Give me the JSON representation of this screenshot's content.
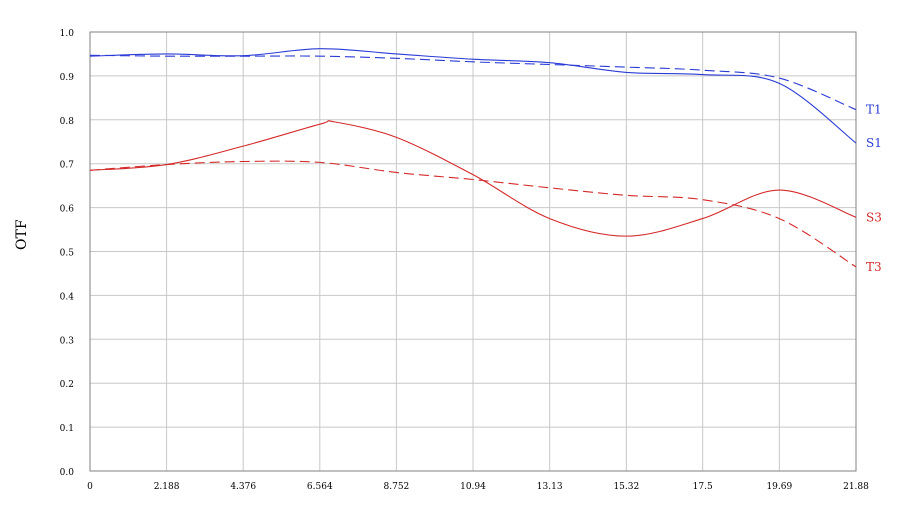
{
  "chart_data": {
    "type": "line",
    "xlabel": "",
    "ylabel": "OTF",
    "x_ticks": [
      "0",
      "2.188",
      "4.376",
      "6.564",
      "8.752",
      "10.94",
      "13.13",
      "15.32",
      "17.5",
      "19.69",
      "21.88"
    ],
    "y_ticks": [
      "0.0",
      "0.1",
      "0.2",
      "0.3",
      "0.4",
      "0.5",
      "0.6",
      "0.7",
      "0.8",
      "0.9",
      "1.0"
    ],
    "xlim": [
      0,
      21.88
    ],
    "ylim": [
      0,
      1.0
    ],
    "grid": true,
    "series": [
      {
        "name": "T1",
        "color": "#2a3bd6",
        "dash": "dashed",
        "x": [
          0,
          2.188,
          4.376,
          6.564,
          8.752,
          10.94,
          13.13,
          15.32,
          17.5,
          19.69,
          21.88
        ],
        "y": [
          0.947,
          0.945,
          0.945,
          0.945,
          0.94,
          0.932,
          0.926,
          0.92,
          0.913,
          0.895,
          0.823
        ]
      },
      {
        "name": "S1",
        "color": "#2a3bd6",
        "dash": "solid",
        "x": [
          0,
          2.188,
          4.376,
          6.564,
          8.752,
          10.94,
          13.13,
          15.32,
          17.5,
          19.69,
          21.88
        ],
        "y": [
          0.945,
          0.95,
          0.946,
          0.962,
          0.95,
          0.938,
          0.93,
          0.908,
          0.903,
          0.883,
          0.747
        ]
      },
      {
        "name": "S3",
        "color": "#d42a2a",
        "dash": "solid",
        "x": [
          0,
          2.188,
          4.376,
          6.564,
          7.0,
          8.752,
          10.94,
          13.13,
          15.32,
          17.5,
          19.69,
          21.88
        ],
        "y": [
          0.685,
          0.698,
          0.74,
          0.79,
          0.795,
          0.76,
          0.675,
          0.575,
          0.535,
          0.575,
          0.64,
          0.578
        ]
      },
      {
        "name": "T3",
        "color": "#d42a2a",
        "dash": "dashed",
        "x": [
          0,
          2.188,
          4.376,
          6.564,
          8.752,
          10.94,
          13.13,
          15.32,
          17.5,
          19.69,
          21.88
        ],
        "y": [
          0.685,
          0.698,
          0.705,
          0.703,
          0.68,
          0.664,
          0.645,
          0.628,
          0.618,
          0.575,
          0.465
        ]
      }
    ],
    "legend": [
      {
        "label": "T1",
        "color": "#2a3bd6",
        "anchor_y": 0.823
      },
      {
        "label": "S1",
        "color": "#2a3bd6",
        "anchor_y": 0.747
      },
      {
        "label": "S3",
        "color": "#d42a2a",
        "anchor_y": 0.578
      },
      {
        "label": "T3",
        "color": "#d42a2a",
        "anchor_y": 0.465
      }
    ]
  }
}
